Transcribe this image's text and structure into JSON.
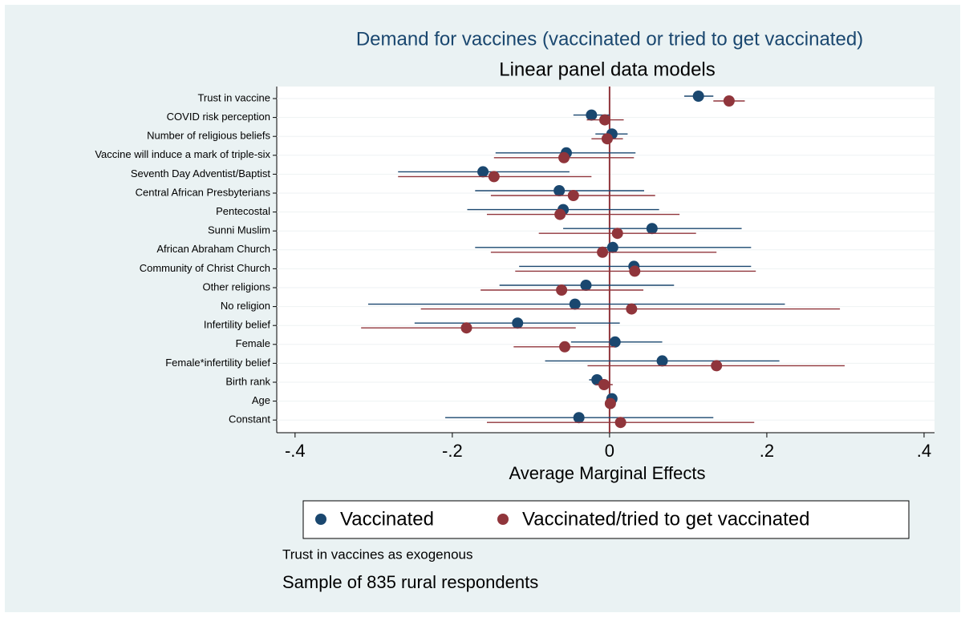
{
  "chart_data": {
    "type": "coefplot",
    "title": "Demand for vaccines (vaccinated or tried to get vaccinated)",
    "subtitle": "Linear panel data models",
    "x_label": "Average Marginal Effects",
    "notes": [
      "Trust in vaccines as exogenous",
      "Sample of 835 rural respondents"
    ],
    "categories": [
      "Trust in vaccine",
      "COVID risk perception",
      "Number of religious beliefs",
      "Vaccine will induce a mark of triple-six",
      "Seventh Day Adventist/Baptist",
      "Central African Presbyterians",
      "Pentecostal",
      "Sunni Muslim",
      "African Abraham Church",
      "Community of Christ Church",
      "Other religions",
      "No religion",
      "Infertility belief",
      "Female",
      "Female*infertility belief",
      "Birth rank",
      "Age",
      "Constant"
    ],
    "series": [
      {
        "name": "Vaccinated",
        "color": "#1a476f",
        "values": [
          0.113,
          -0.023,
          0.003,
          -0.055,
          -0.161,
          -0.064,
          -0.059,
          0.054,
          0.004,
          0.031,
          -0.03,
          -0.044,
          -0.117,
          0.007,
          0.067,
          -0.016,
          0.003,
          -0.039
        ],
        "lower": [
          0.095,
          -0.046,
          -0.018,
          -0.145,
          -0.269,
          -0.171,
          -0.181,
          -0.059,
          -0.171,
          -0.115,
          -0.14,
          -0.307,
          -0.248,
          -0.049,
          -0.082,
          -0.026,
          -0.001,
          -0.209
        ],
        "upper": [
          0.132,
          0,
          0.023,
          0.033,
          -0.051,
          0.044,
          0.063,
          0.168,
          0.18,
          0.18,
          0.082,
          0.223,
          0.013,
          0.067,
          0.216,
          -0.007,
          0.007,
          0.132
        ]
      },
      {
        "name": "Vaccinated/tried to get vaccinated",
        "color": "#90353b",
        "values": [
          0.152,
          -0.006,
          -0.003,
          -0.058,
          -0.147,
          -0.046,
          -0.063,
          0.01,
          -0.009,
          0.032,
          -0.061,
          0.028,
          -0.182,
          -0.057,
          0.136,
          -0.007,
          0.001,
          0.014
        ],
        "lower": [
          0.132,
          -0.029,
          -0.023,
          -0.147,
          -0.269,
          -0.151,
          -0.156,
          -0.09,
          -0.151,
          -0.12,
          -0.164,
          -0.24,
          -0.316,
          -0.122,
          -0.028,
          -0.018,
          -0.003,
          -0.156
        ],
        "upper": [
          0.172,
          0.018,
          0.017,
          0.031,
          -0.023,
          0.058,
          0.089,
          0.11,
          0.136,
          0.186,
          0.043,
          0.293,
          -0.043,
          0.007,
          0.299,
          0.004,
          0.005,
          0.184
        ]
      }
    ],
    "xlim": [
      -0.4233,
      0.4133
    ],
    "xticks": [
      {
        "value": -0.4,
        "label": "-.4"
      },
      {
        "value": -0.2,
        "label": "-.2"
      },
      0,
      {
        "value": 0.2,
        "label": ".2"
      },
      {
        "value": 0.4,
        "label": ".4"
      }
    ],
    "reference_line": 0,
    "reference_color": "#90353b",
    "grid": true
  }
}
